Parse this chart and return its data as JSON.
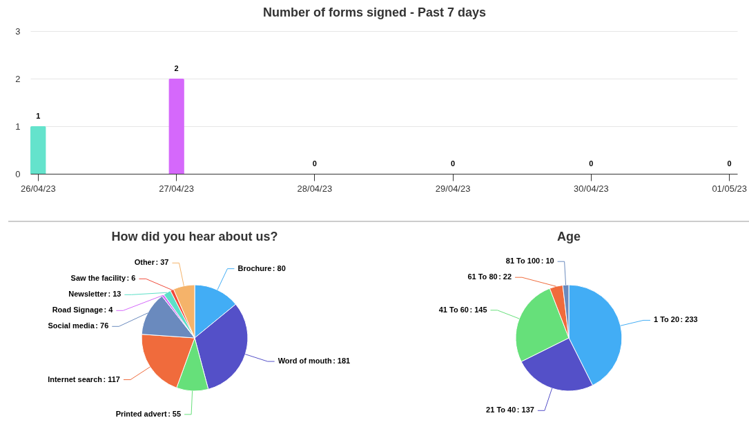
{
  "chart_data": [
    {
      "type": "bar",
      "title": "Number of forms signed - Past 7 days",
      "categories": [
        "26/04/23",
        "27/04/23",
        "28/04/23",
        "29/04/23",
        "30/04/23",
        "01/05/23"
      ],
      "values": [
        1,
        2,
        0,
        0,
        0,
        0
      ],
      "colors": [
        "#64e3cc",
        "#d568fb",
        "#f04a3a",
        "#f5b36a",
        "#42adf5",
        "#5450c8"
      ],
      "ylim": [
        0,
        3
      ],
      "yticks": [
        0,
        1,
        2,
        3
      ],
      "grid": "y",
      "data_labels": true
    },
    {
      "type": "pie",
      "title": "How did you hear about us?",
      "categories": [
        "Brochure",
        "Word of mouth",
        "Printed advert",
        "Internet search",
        "Social media",
        "Road Signage",
        "Newsletter",
        "Saw the facility",
        "Other"
      ],
      "values": [
        80,
        181,
        55,
        117,
        76,
        4,
        13,
        6,
        37
      ],
      "value_labels": [
        ": 80",
        ": 181",
        ": 55",
        ": 117",
        ": 76",
        ": 4",
        ": 13",
        ": 6",
        ": 37"
      ],
      "colors": [
        "#42adf5",
        "#5450c8",
        "#66e07a",
        "#f06b3c",
        "#6a8abe",
        "#d568fb",
        "#5ce0c8",
        "#f04a3a",
        "#f5b36a"
      ]
    },
    {
      "type": "pie",
      "title": "Age",
      "categories": [
        "1 To 20",
        "21 To 40",
        "41 To 60",
        "61 To 80",
        "81 To 100"
      ],
      "values": [
        233,
        137,
        145,
        22,
        10
      ],
      "value_labels": [
        ": 233",
        ": 137",
        ": 145",
        ": 22",
        ": 10"
      ],
      "colors": [
        "#42adf5",
        "#5450c8",
        "#66e07a",
        "#f06b3c",
        "#6a8abe"
      ]
    }
  ]
}
